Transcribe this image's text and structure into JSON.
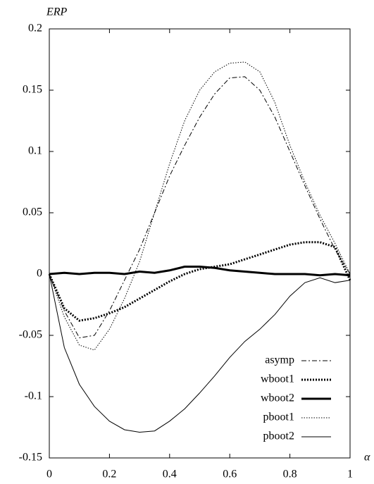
{
  "chart_data": {
    "type": "line",
    "y_label": "ERP",
    "x_label": "α",
    "x": [
      0,
      0.05,
      0.1,
      0.15,
      0.2,
      0.25,
      0.3,
      0.35,
      0.4,
      0.45,
      0.5,
      0.55,
      0.6,
      0.65,
      0.7,
      0.75,
      0.8,
      0.85,
      0.9,
      0.95,
      1
    ],
    "series": [
      {
        "name": "asymp",
        "color": "#000000",
        "dash": "7 3 2 3",
        "width": 1,
        "values": [
          0,
          -0.03,
          -0.052,
          -0.05,
          -0.03,
          -0.005,
          0.02,
          0.05,
          0.08,
          0.105,
          0.128,
          0.147,
          0.16,
          0.161,
          0.15,
          0.128,
          0.1,
          0.072,
          0.045,
          0.02,
          0
        ]
      },
      {
        "name": "wboot1",
        "color": "#000000",
        "dash": "2 2",
        "width": 3,
        "values": [
          0,
          -0.028,
          -0.038,
          -0.036,
          -0.032,
          -0.027,
          -0.02,
          -0.013,
          -0.006,
          0,
          0.004,
          0.006,
          0.008,
          0.012,
          0.016,
          0.02,
          0.024,
          0.026,
          0.026,
          0.022,
          -0.005
        ]
      },
      {
        "name": "wboot2",
        "color": "#000000",
        "dash": "none",
        "width": 3,
        "values": [
          0,
          0.001,
          0,
          0.001,
          0.001,
          0,
          0.002,
          0.001,
          0.003,
          0.006,
          0.006,
          0.005,
          0.003,
          0.002,
          0.001,
          0,
          0,
          0,
          -0.001,
          0,
          -0.001
        ]
      },
      {
        "name": "pboot1",
        "color": "#000000",
        "dash": "1.5 2",
        "width": 1,
        "values": [
          0,
          -0.035,
          -0.058,
          -0.062,
          -0.045,
          -0.02,
          0.01,
          0.05,
          0.09,
          0.125,
          0.15,
          0.165,
          0.172,
          0.173,
          0.165,
          0.14,
          0.105,
          0.075,
          0.048,
          0.025,
          0
        ]
      },
      {
        "name": "pboot2",
        "color": "#000000",
        "dash": "none",
        "width": 1,
        "values": [
          0,
          -0.06,
          -0.09,
          -0.108,
          -0.12,
          -0.127,
          -0.129,
          -0.128,
          -0.12,
          -0.11,
          -0.097,
          -0.083,
          -0.068,
          -0.055,
          -0.045,
          -0.033,
          -0.018,
          -0.007,
          -0.003,
          -0.007,
          -0.005
        ]
      }
    ],
    "xlim": [
      0,
      1
    ],
    "xticks": [
      0,
      0.2,
      0.4,
      0.6,
      0.8,
      1
    ],
    "ylim": [
      -0.15,
      0.2
    ],
    "yticks": [
      -0.15,
      -0.1,
      -0.05,
      0,
      0.05,
      0.1,
      0.15,
      0.2
    ],
    "legend": "lower right"
  }
}
